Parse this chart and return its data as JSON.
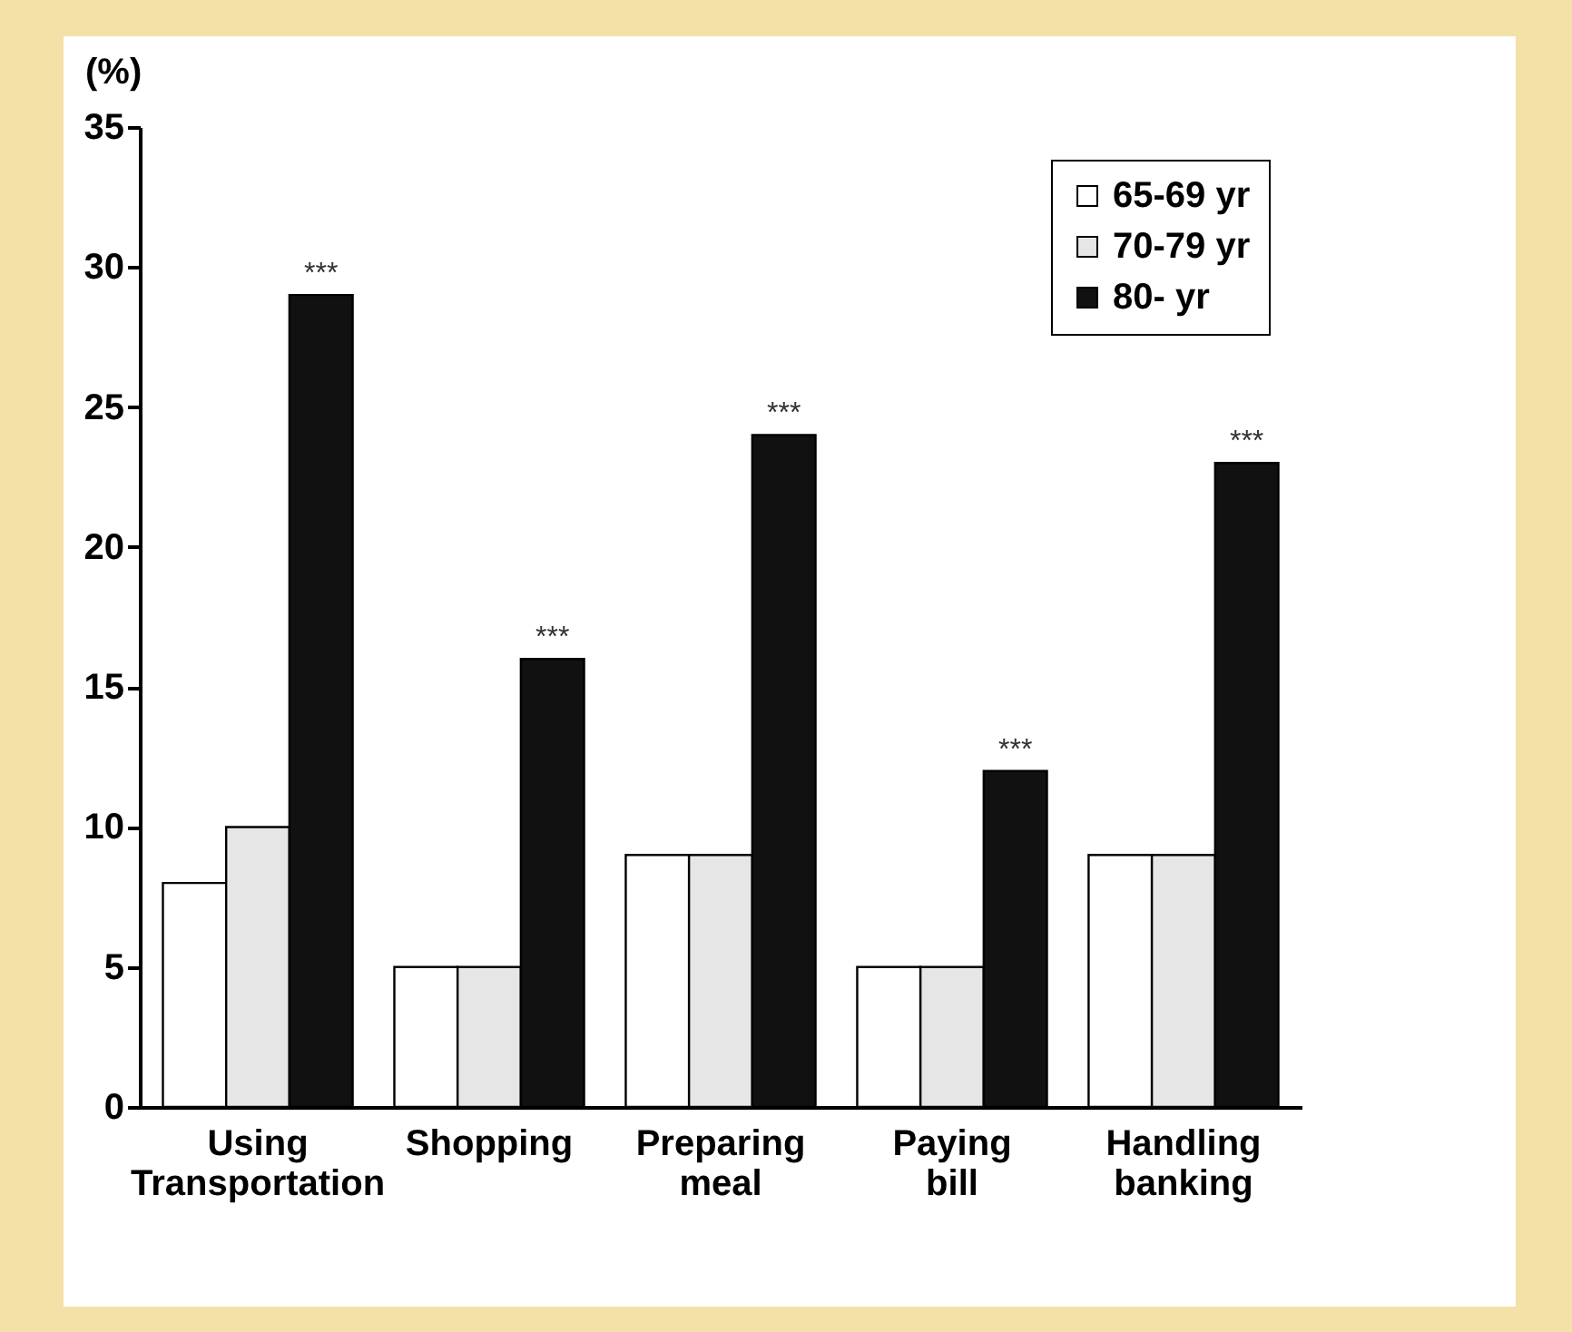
{
  "chart_data": {
    "type": "bar",
    "ylabel": "(%)",
    "categories": [
      "Using Transportation",
      "Shopping",
      "Preparing meal",
      "Paying bill",
      "Handling banking"
    ],
    "series": [
      {
        "name": "65-69 yr",
        "color": "#ffffff",
        "values": [
          8,
          5,
          9,
          5,
          9
        ]
      },
      {
        "name": "70-79 yr",
        "color": "#e6e6e6",
        "values": [
          10,
          5,
          9,
          5,
          9
        ]
      },
      {
        "name": "80- yr",
        "color": "#111111",
        "values": [
          29,
          16,
          24,
          12,
          23
        ]
      }
    ],
    "ylim": [
      0,
      35
    ],
    "yticks": [
      0,
      5,
      10,
      15,
      20,
      25,
      30,
      35
    ],
    "grid": false,
    "legend": "top right",
    "annotations": [
      "***",
      "***",
      "***",
      "***",
      "***"
    ]
  }
}
